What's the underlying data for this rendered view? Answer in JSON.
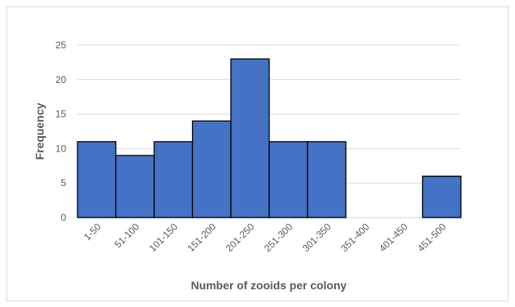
{
  "chart_data": {
    "type": "bar",
    "title": "",
    "xlabel": "Number of zooids per colony",
    "ylabel": "Frequency",
    "categories": [
      "1-50",
      "51-100",
      "101-150",
      "151-200",
      "201-250",
      "251-300",
      "301-350",
      "351-400",
      "401-450",
      "451-500"
    ],
    "values": [
      11,
      9,
      11,
      14,
      23,
      11,
      11,
      0,
      0,
      6
    ],
    "ylim": [
      0,
      25
    ],
    "yticks": [
      0,
      5,
      10,
      15,
      20,
      25
    ],
    "grid": true,
    "legend": "none",
    "colors": {
      "bar": "#4472c4",
      "bar_edge": "#000000",
      "grid": "#d9d9d9",
      "text": "#595959"
    }
  }
}
